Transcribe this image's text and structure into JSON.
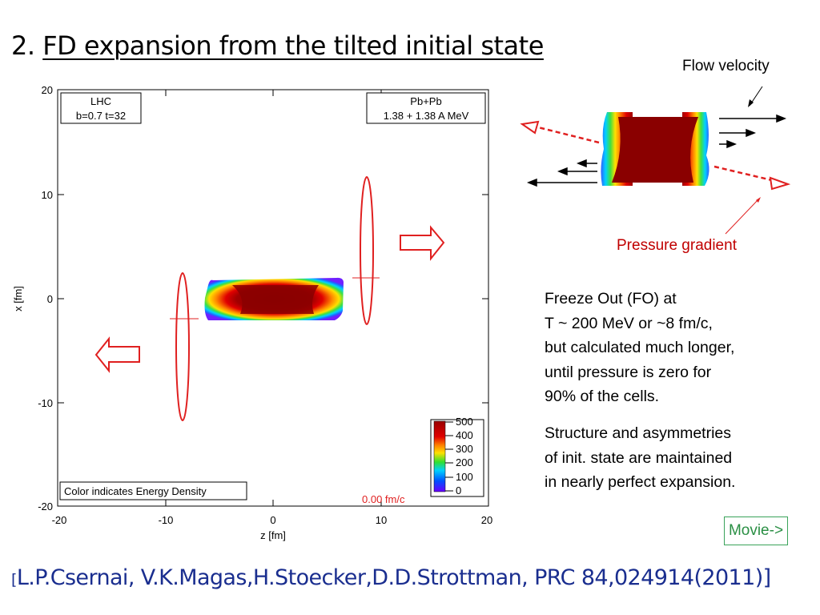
{
  "title": {
    "prefix": "2.",
    "text": "FD expansion from the tilted initial state"
  },
  "plot": {
    "box_left": {
      "line1": "LHC",
      "line2": "b=0.7  t=32"
    },
    "box_right": {
      "line1": "Pb+Pb",
      "line2": "1.38 + 1.38 A MeV"
    },
    "color_note": "Color indicates Energy Density",
    "time_label": "0.00 fm/c",
    "xlabel": "z  [fm]",
    "ylabel": "x [fm]",
    "xticks": [
      "-20",
      "-10",
      "0",
      "10",
      "20"
    ],
    "yticks": [
      "20",
      "10",
      "0",
      "-10",
      "-20"
    ],
    "colorbar_ticks": [
      "500",
      "400",
      "300",
      "200",
      "100",
      "0"
    ]
  },
  "chart_data": {
    "type": "heatmap",
    "title": "",
    "xlabel": "z  [fm]",
    "ylabel": "x [fm]",
    "xlim": [
      -20,
      20
    ],
    "ylim": [
      -20,
      20
    ],
    "colorbar": {
      "min": 0,
      "max": 500,
      "ticks": [
        500,
        400,
        300,
        200,
        100,
        0
      ]
    },
    "annotations": [
      "LHC",
      "b=0.7  t=32",
      "Pb+Pb",
      "1.38 + 1.38 A MeV",
      "Color indicates Energy Density",
      "0.00 fm/c"
    ]
  },
  "inset": {
    "flow_velocity": "Flow velocity",
    "pressure_gradient": "Pressure gradient"
  },
  "freeze_out": {
    "line1": "Freeze Out (FO) at",
    "line2": "T ~ 200 MeV or ~8 fm/c,",
    "line3": "but calculated much longer,",
    "line4": "until pressure  is zero for",
    "line5": "90% of the cells."
  },
  "structure": {
    "line1": "Structure and asymmetries",
    "line2": "of init. state are maintained",
    "line3": "in nearly perfect expansion."
  },
  "movie_button": "Movie->",
  "reference": {
    "open": "[",
    "text": "L.P.Csernai, V.K.Magas,H.Stoecker,D.D.Strottman, PRC  84,024914(2011)]"
  },
  "colors": {
    "accent_red": "#e02020",
    "reference_blue": "#1a2e8f",
    "movie_green": "#2a8f44"
  }
}
